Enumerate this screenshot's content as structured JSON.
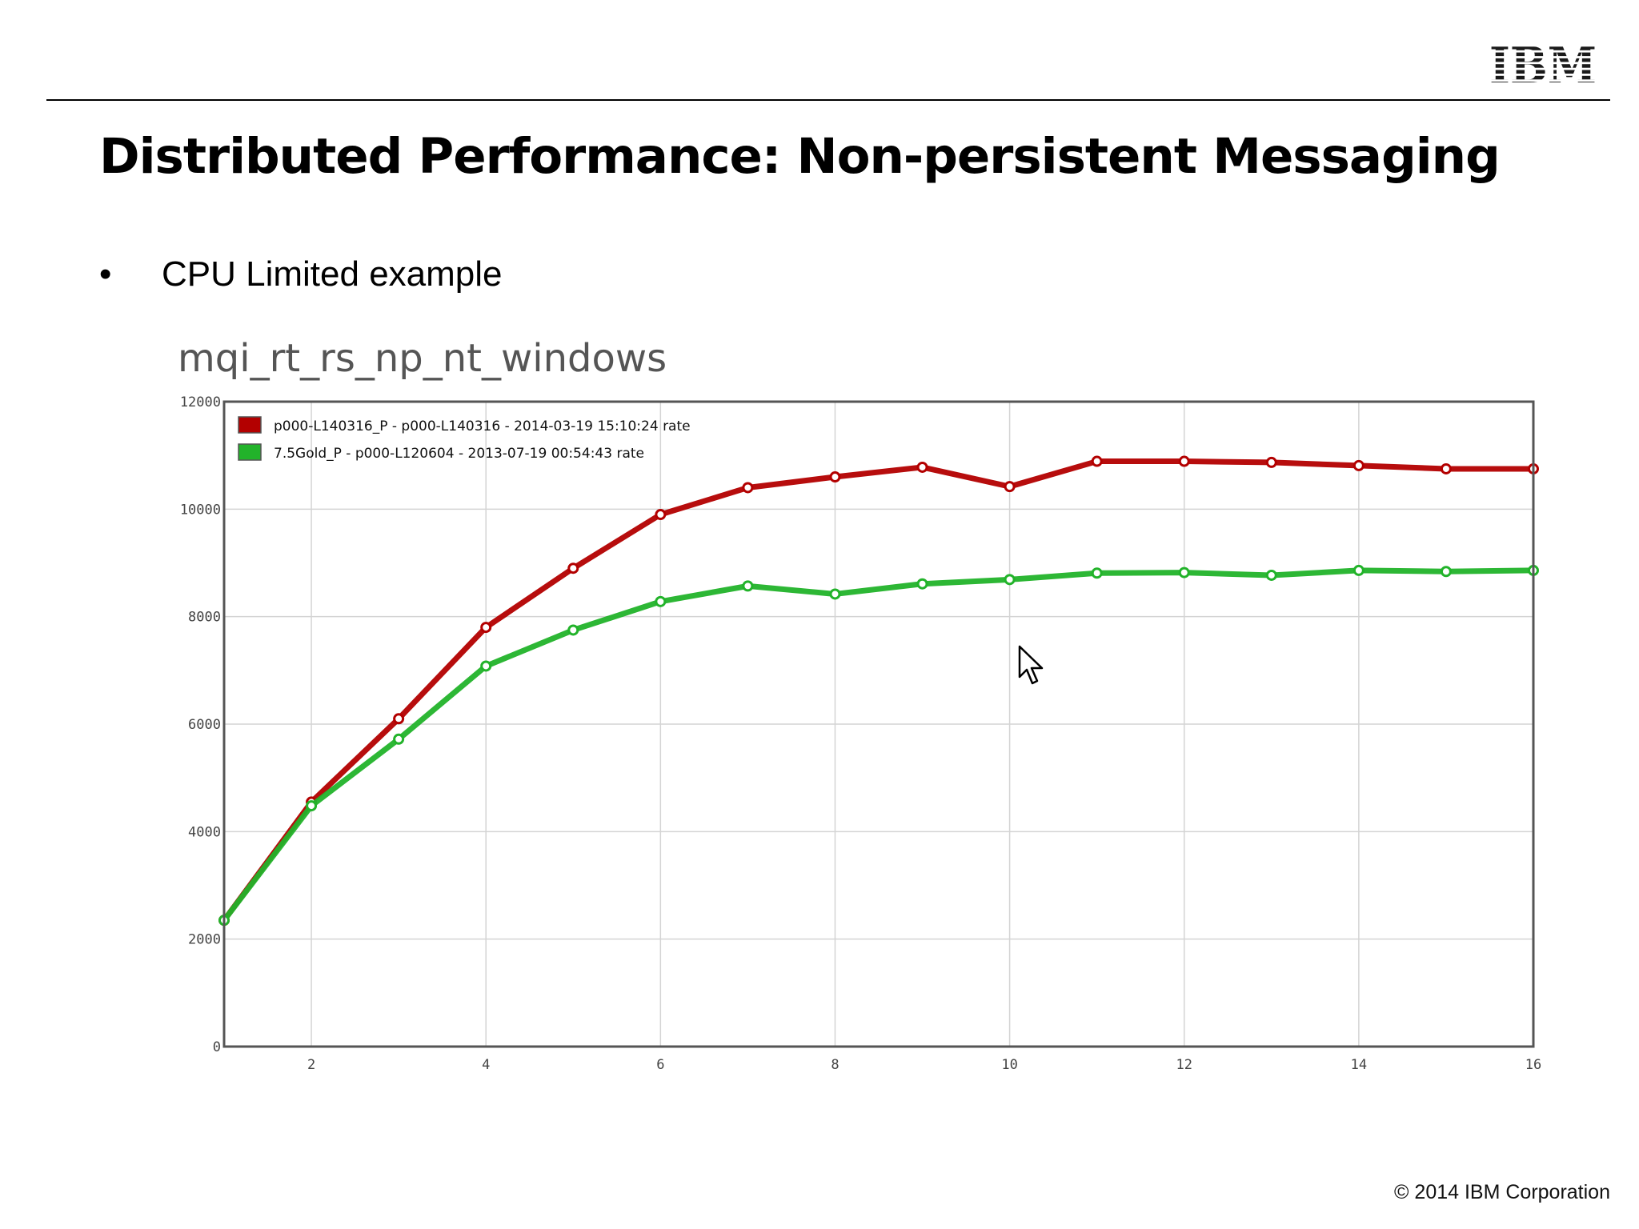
{
  "slide": {
    "title": "Distributed Performance: Non-persistent Messaging",
    "bullet": "CPU Limited example",
    "footer": "© 2014 IBM Corporation",
    "logo": "IBM"
  },
  "chart_data": {
    "type": "line",
    "title": "mqi_rt_rs_np_nt_windows",
    "xlabel": "",
    "ylabel": "",
    "xlim": [
      1,
      16
    ],
    "ylim": [
      0,
      12000
    ],
    "x_ticks": [
      2,
      4,
      6,
      8,
      10,
      12,
      14,
      16
    ],
    "y_ticks": [
      0,
      2000,
      4000,
      6000,
      8000,
      10000,
      12000
    ],
    "grid": true,
    "legend_position": "top-left",
    "x": [
      1,
      2,
      3,
      4,
      5,
      6,
      7,
      8,
      9,
      10,
      11,
      12,
      13,
      14,
      15,
      16
    ],
    "series": [
      {
        "name": "p000-L140316_P - p000-L140316 - 2014-03-19 15:10:24  rate",
        "color": "#b30000",
        "values": [
          2350,
          4550,
          6100,
          7800,
          8900,
          9900,
          10400,
          10600,
          10780,
          10420,
          10890,
          10890,
          10870,
          10810,
          10750,
          10750
        ]
      },
      {
        "name": "7.5Gold_P - p000-L120604 - 2013-07-19 00:54:43  rate",
        "color": "#22b32a",
        "values": [
          2350,
          4480,
          5720,
          7080,
          7750,
          8280,
          8570,
          8420,
          8610,
          8690,
          8810,
          8820,
          8770,
          8860,
          8840,
          8860
        ]
      }
    ]
  }
}
